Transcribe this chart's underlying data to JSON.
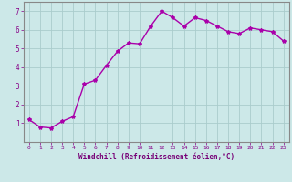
{
  "x": [
    0,
    1,
    2,
    3,
    4,
    5,
    6,
    7,
    8,
    9,
    10,
    11,
    12,
    13,
    14,
    15,
    16,
    17,
    18,
    19,
    20,
    21,
    22,
    23
  ],
  "y": [
    1.2,
    0.8,
    0.75,
    1.1,
    1.35,
    3.1,
    3.3,
    4.1,
    4.85,
    5.3,
    5.25,
    6.2,
    7.0,
    6.65,
    6.2,
    6.65,
    6.5,
    6.2,
    5.9,
    5.8,
    6.1,
    6.0,
    5.9,
    5.4
  ],
  "line_color": "#aa00aa",
  "marker": "*",
  "marker_size": 3,
  "xlabel": "Windchill (Refroidissement éolien,°C)",
  "xlabel_color": "#770077",
  "ylim": [
    0.0,
    7.5
  ],
  "xlim": [
    -0.5,
    23.5
  ],
  "yticks": [
    1,
    2,
    3,
    4,
    5,
    6,
    7
  ],
  "xticks": [
    0,
    1,
    2,
    3,
    4,
    5,
    6,
    7,
    8,
    9,
    10,
    11,
    12,
    13,
    14,
    15,
    16,
    17,
    18,
    19,
    20,
    21,
    22,
    23
  ],
  "bg_color": "#cce8e8",
  "grid_color": "#aacccc",
  "tick_color": "#880088",
  "axis_color": "#888888",
  "line_width": 1.0
}
